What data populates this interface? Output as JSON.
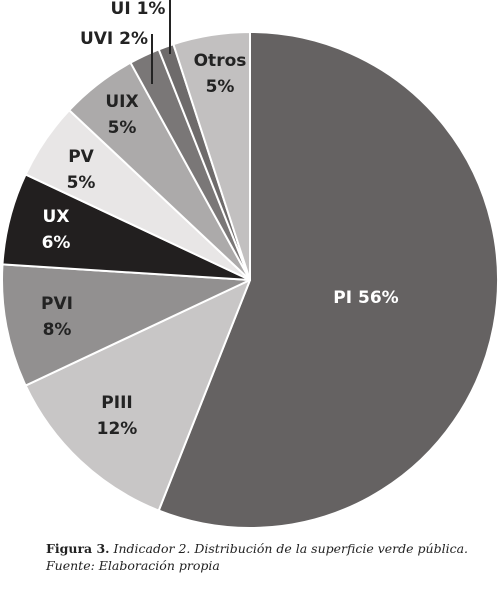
{
  "chart_data": {
    "type": "pie",
    "start_angle_deg": 0,
    "direction": "clockwise",
    "slices": [
      {
        "name": "PI",
        "value": 56,
        "color": "#656262",
        "label_color": "#ffffff",
        "lines": [
          "PI 56%"
        ]
      },
      {
        "name": "PIII",
        "value": 12,
        "color": "#c8c6c6",
        "label_color": "#232323",
        "lines": [
          "PIII",
          "12%"
        ]
      },
      {
        "name": "PVI",
        "value": 8,
        "color": "#929090",
        "label_color": "#232323",
        "lines": [
          "PVI",
          "8%"
        ]
      },
      {
        "name": "UX",
        "value": 6,
        "color": "#221f1f",
        "label_color": "#ffffff",
        "lines": [
          "UX",
          "6%"
        ]
      },
      {
        "name": "PV",
        "value": 5,
        "color": "#e8e6e6",
        "label_color": "#232323",
        "lines": [
          "PV",
          "5%"
        ]
      },
      {
        "name": "UIX",
        "value": 5,
        "color": "#acaaaa",
        "label_color": "#232323",
        "lines": [
          "UIX",
          "5%"
        ]
      },
      {
        "name": "UVI",
        "value": 2,
        "color": "#7a7777",
        "label_color": "#232323",
        "lines": [
          "UVI 2%"
        ]
      },
      {
        "name": "UI",
        "value": 1,
        "color": "#6e6b6b",
        "label_color": "#232323",
        "lines": [
          "UI 1%"
        ]
      },
      {
        "name": "Otros",
        "value": 5,
        "color": "#c2c0c0",
        "label_color": "#232323",
        "lines": [
          "Otros",
          "5%"
        ]
      }
    ]
  },
  "caption": {
    "prefix": "Figura 3.",
    "text": "Indicador 2. Distribución de la superficie verde pública.",
    "source": "Fuente: Elaboración propia"
  }
}
